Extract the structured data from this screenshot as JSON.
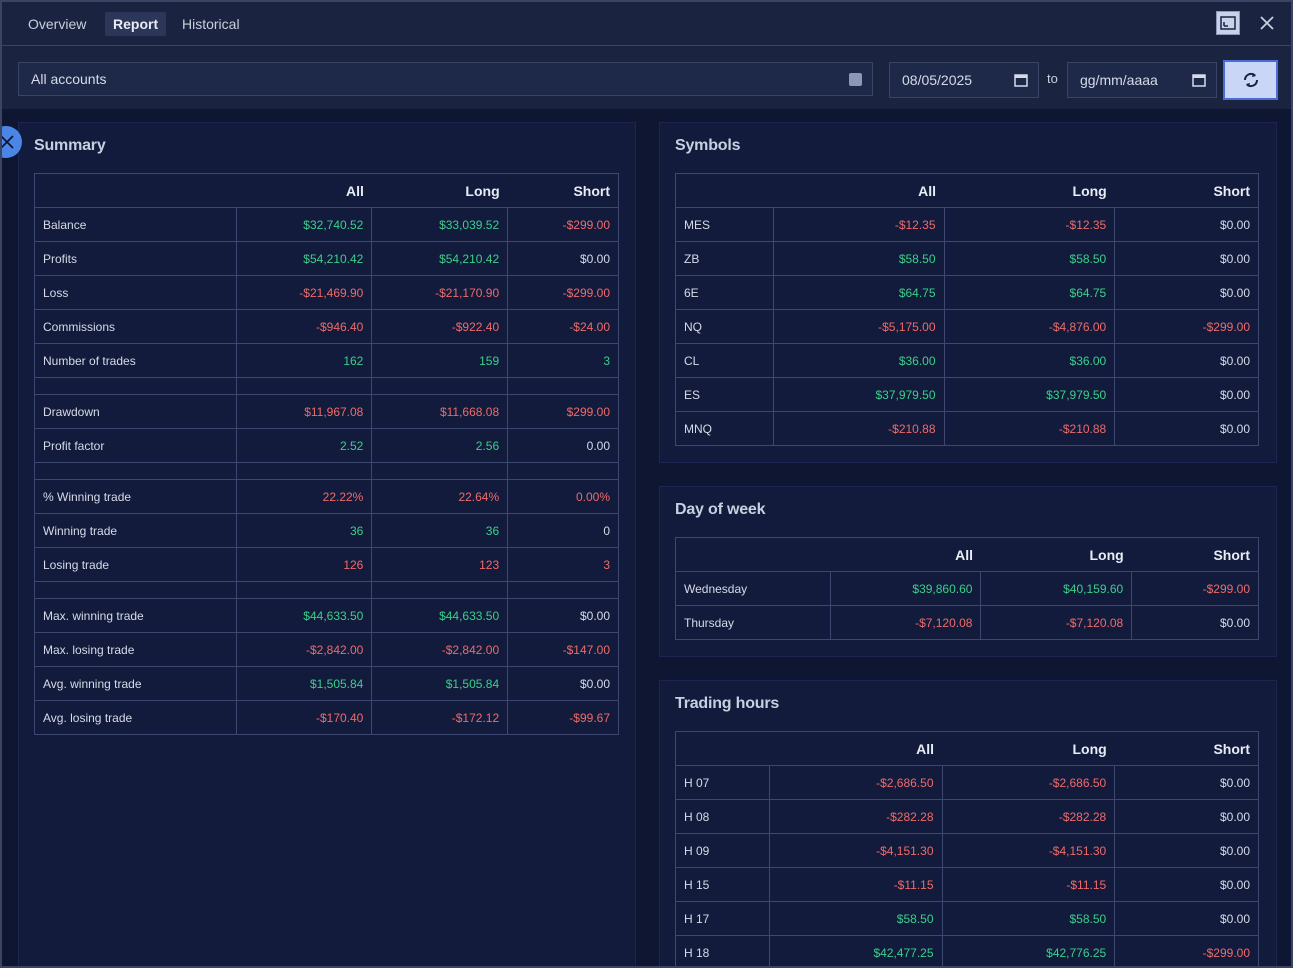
{
  "tabs": [
    {
      "label": "Overview",
      "active": false
    },
    {
      "label": "Report",
      "active": true
    },
    {
      "label": "Historical",
      "active": false
    }
  ],
  "filters": {
    "account": "All accounts",
    "date_from": "08/05/2025",
    "to_label": "to",
    "date_to_placeholder": "gg/mm/aaaa"
  },
  "columns": {
    "all": "All",
    "long": "Long",
    "short": "Short"
  },
  "summary": {
    "title": "Summary",
    "rows": [
      {
        "label": "Balance",
        "all": "$32,740.52",
        "long": "$33,039.52",
        "short": "-$299.00"
      },
      {
        "label": "Profits",
        "all": "$54,210.42",
        "long": "$54,210.42",
        "short": "$0.00"
      },
      {
        "label": "Loss",
        "all": "-$21,469.90",
        "long": "-$21,170.90",
        "short": "-$299.00"
      },
      {
        "label": "Commissions",
        "all": "-$946.40",
        "long": "-$922.40",
        "short": "-$24.00"
      },
      {
        "label": "Number of trades",
        "all": "162",
        "long": "159",
        "short": "3"
      },
      {
        "label": "Drawdown",
        "all": "$11,967.08",
        "long": "$11,668.08",
        "short": "$299.00"
      },
      {
        "label": "Profit factor",
        "all": "2.52",
        "long": "2.56",
        "short": "0.00"
      },
      {
        "label": "% Winning trade",
        "all": "22.22%",
        "long": "22.64%",
        "short": "0.00%"
      },
      {
        "label": "Winning trade",
        "all": "36",
        "long": "36",
        "short": "0"
      },
      {
        "label": "Losing trade",
        "all": "126",
        "long": "123",
        "short": "3"
      },
      {
        "label": "Max. winning trade",
        "all": "$44,633.50",
        "long": "$44,633.50",
        "short": "$0.00"
      },
      {
        "label": "Max. losing trade",
        "all": "-$2,842.00",
        "long": "-$2,842.00",
        "short": "-$147.00"
      },
      {
        "label": "Avg. winning trade",
        "all": "$1,505.84",
        "long": "$1,505.84",
        "short": "$0.00"
      },
      {
        "label": "Avg. losing trade",
        "all": "-$170.40",
        "long": "-$172.12",
        "short": "-$99.67"
      }
    ]
  },
  "symbols": {
    "title": "Symbols",
    "rows": [
      {
        "label": "MES",
        "all": "-$12.35",
        "long": "-$12.35",
        "short": "$0.00"
      },
      {
        "label": "ZB",
        "all": "$58.50",
        "long": "$58.50",
        "short": "$0.00"
      },
      {
        "label": "6E",
        "all": "$64.75",
        "long": "$64.75",
        "short": "$0.00"
      },
      {
        "label": "NQ",
        "all": "-$5,175.00",
        "long": "-$4,876.00",
        "short": "-$299.00"
      },
      {
        "label": "CL",
        "all": "$36.00",
        "long": "$36.00",
        "short": "$0.00"
      },
      {
        "label": "ES",
        "all": "$37,979.50",
        "long": "$37,979.50",
        "short": "$0.00"
      },
      {
        "label": "MNQ",
        "all": "-$210.88",
        "long": "-$210.88",
        "short": "$0.00"
      }
    ]
  },
  "day_of_week": {
    "title": "Day of week",
    "rows": [
      {
        "label": "Wednesday",
        "all": "$39,860.60",
        "long": "$40,159.60",
        "short": "-$299.00"
      },
      {
        "label": "Thursday",
        "all": "-$7,120.08",
        "long": "-$7,120.08",
        "short": "$0.00"
      }
    ]
  },
  "trading_hours": {
    "title": "Trading hours",
    "rows": [
      {
        "label": "H 07",
        "all": "-$2,686.50",
        "long": "-$2,686.50",
        "short": "$0.00"
      },
      {
        "label": "H 08",
        "all": "-$282.28",
        "long": "-$282.28",
        "short": "$0.00"
      },
      {
        "label": "H 09",
        "all": "-$4,151.30",
        "long": "-$4,151.30",
        "short": "$0.00"
      },
      {
        "label": "H 15",
        "all": "-$11.15",
        "long": "-$11.15",
        "short": "$0.00"
      },
      {
        "label": "H 17",
        "all": "$58.50",
        "long": "$58.50",
        "short": "$0.00"
      },
      {
        "label": "H 18",
        "all": "$42,477.25",
        "long": "$42,776.25",
        "short": "-$299.00"
      }
    ]
  },
  "colors": {
    "positive": "#3ad08a",
    "negative": "#f06a6a",
    "accent": "#4b86e6"
  }
}
